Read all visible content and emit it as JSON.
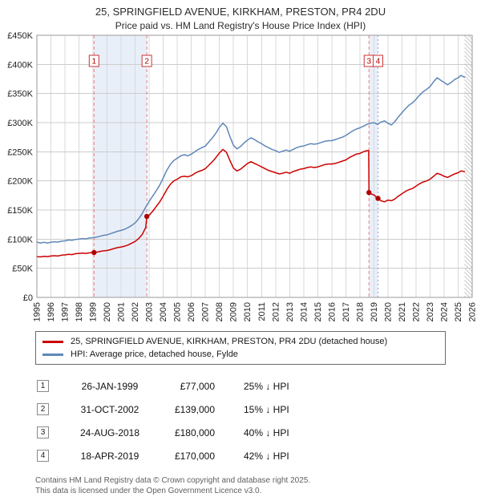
{
  "page": {
    "title": "25, SPRINGFIELD AVENUE, KIRKHAM, PRESTON, PR4 2DU",
    "subtitle": "Price paid vs. HM Land Registry's House Price Index (HPI)"
  },
  "chart_data": {
    "type": "line",
    "title": "25, SPRINGFIELD AVENUE, KIRKHAM, PRESTON, PR4 2DU",
    "subtitle": "Price paid vs. HM Land Registry's House Price Index (HPI)",
    "y_unit": "£K",
    "ylim": [
      0,
      450
    ],
    "x_range": [
      1995,
      2026
    ],
    "grid": true,
    "legend_position": "below",
    "yticks": [
      {
        "value": 0,
        "label": "£0"
      },
      {
        "value": 50,
        "label": "£50K"
      },
      {
        "value": 100,
        "label": "£100K"
      },
      {
        "value": 150,
        "label": "£150K"
      },
      {
        "value": 200,
        "label": "£200K"
      },
      {
        "value": 250,
        "label": "£250K"
      },
      {
        "value": 300,
        "label": "£300K"
      },
      {
        "value": 350,
        "label": "£350K"
      },
      {
        "value": 400,
        "label": "£400K"
      },
      {
        "value": 450,
        "label": "£450K"
      }
    ],
    "x_ticks": [
      1995,
      1996,
      1997,
      1998,
      1999,
      2000,
      2001,
      2002,
      2003,
      2004,
      2005,
      2006,
      2007,
      2008,
      2009,
      2010,
      2011,
      2012,
      2013,
      2014,
      2015,
      2016,
      2017,
      2018,
      2019,
      2020,
      2021,
      2022,
      2023,
      2024,
      2025,
      2026
    ],
    "bands": [
      {
        "x0": 1999.07,
        "x1": 2002.83,
        "color": "#e9eff9"
      },
      {
        "x0": 2018.65,
        "x1": 2019.29,
        "color": "#e9eff9"
      }
    ],
    "hatch_from_x": 2025.45,
    "colors": {
      "grid": "#d9d9d9",
      "grid_h": "#cccccc",
      "border": "#999999",
      "hatch": "#c8c8c8",
      "dot": "#b00000",
      "badge_border": "#cc3333",
      "badge_text": "#b00000"
    },
    "series": [
      {
        "name": "HPI: Average price, detached house, Fylde",
        "color": "#5f87b8",
        "width": 1.5,
        "points": [
          [
            1995.0,
            95
          ],
          [
            1995.25,
            93.5
          ],
          [
            1995.5,
            94.5
          ],
          [
            1995.75,
            93.5
          ],
          [
            1996.0,
            94.5
          ],
          [
            1996.25,
            95.5
          ],
          [
            1996.5,
            95
          ],
          [
            1996.75,
            96.5
          ],
          [
            1997.0,
            97
          ],
          [
            1997.25,
            98.5
          ],
          [
            1997.5,
            98
          ],
          [
            1997.75,
            99.5
          ],
          [
            1998.0,
            100
          ],
          [
            1998.25,
            101
          ],
          [
            1998.5,
            100.5
          ],
          [
            1998.75,
            102
          ],
          [
            1999.0,
            102.5
          ],
          [
            1999.25,
            103.5
          ],
          [
            1999.5,
            105
          ],
          [
            1999.75,
            106.5
          ],
          [
            2000.0,
            107.5
          ],
          [
            2000.25,
            109.5
          ],
          [
            2000.5,
            111.5
          ],
          [
            2000.75,
            113.5
          ],
          [
            2001.0,
            115
          ],
          [
            2001.25,
            117
          ],
          [
            2001.5,
            120
          ],
          [
            2001.75,
            123.5
          ],
          [
            2002.0,
            128
          ],
          [
            2002.25,
            135
          ],
          [
            2002.5,
            144
          ],
          [
            2002.75,
            155
          ],
          [
            2003.0,
            165
          ],
          [
            2003.25,
            174
          ],
          [
            2003.5,
            183
          ],
          [
            2003.75,
            193
          ],
          [
            2004.0,
            205
          ],
          [
            2004.25,
            218
          ],
          [
            2004.5,
            228
          ],
          [
            2004.75,
            235
          ],
          [
            2005.0,
            239
          ],
          [
            2005.25,
            243
          ],
          [
            2005.5,
            245
          ],
          [
            2005.75,
            243
          ],
          [
            2006.0,
            246
          ],
          [
            2006.25,
            250
          ],
          [
            2006.5,
            254
          ],
          [
            2006.75,
            257
          ],
          [
            2007.0,
            260
          ],
          [
            2007.25,
            267
          ],
          [
            2007.5,
            274
          ],
          [
            2007.75,
            282
          ],
          [
            2008.0,
            292
          ],
          [
            2008.25,
            299
          ],
          [
            2008.5,
            293
          ],
          [
            2008.75,
            276
          ],
          [
            2009.0,
            261
          ],
          [
            2009.25,
            255
          ],
          [
            2009.5,
            259
          ],
          [
            2009.75,
            265
          ],
          [
            2010.0,
            270
          ],
          [
            2010.25,
            274
          ],
          [
            2010.5,
            271
          ],
          [
            2010.75,
            267
          ],
          [
            2011.0,
            264
          ],
          [
            2011.25,
            260
          ],
          [
            2011.5,
            257
          ],
          [
            2011.75,
            254
          ],
          [
            2012.0,
            252
          ],
          [
            2012.25,
            249
          ],
          [
            2012.5,
            251
          ],
          [
            2012.75,
            253
          ],
          [
            2013.0,
            251
          ],
          [
            2013.25,
            254
          ],
          [
            2013.5,
            257
          ],
          [
            2013.75,
            259
          ],
          [
            2014.0,
            260
          ],
          [
            2014.25,
            262
          ],
          [
            2014.5,
            264
          ],
          [
            2014.75,
            263
          ],
          [
            2015.0,
            264
          ],
          [
            2015.25,
            266
          ],
          [
            2015.5,
            268
          ],
          [
            2015.75,
            269
          ],
          [
            2016.0,
            269
          ],
          [
            2016.25,
            271
          ],
          [
            2016.5,
            273
          ],
          [
            2016.75,
            275
          ],
          [
            2017.0,
            278
          ],
          [
            2017.25,
            282
          ],
          [
            2017.5,
            286
          ],
          [
            2017.75,
            289
          ],
          [
            2018.0,
            291
          ],
          [
            2018.25,
            294
          ],
          [
            2018.5,
            297
          ],
          [
            2018.75,
            299
          ],
          [
            2019.0,
            300
          ],
          [
            2019.25,
            297
          ],
          [
            2019.5,
            301
          ],
          [
            2019.75,
            303
          ],
          [
            2020.0,
            299
          ],
          [
            2020.25,
            296
          ],
          [
            2020.5,
            302
          ],
          [
            2020.75,
            310
          ],
          [
            2021.0,
            317
          ],
          [
            2021.25,
            324
          ],
          [
            2021.5,
            330
          ],
          [
            2021.75,
            334
          ],
          [
            2022.0,
            340
          ],
          [
            2022.25,
            347
          ],
          [
            2022.5,
            353
          ],
          [
            2022.75,
            357
          ],
          [
            2023.0,
            362
          ],
          [
            2023.25,
            370
          ],
          [
            2023.5,
            377
          ],
          [
            2023.75,
            373
          ],
          [
            2024.0,
            369
          ],
          [
            2024.25,
            365
          ],
          [
            2024.5,
            369
          ],
          [
            2024.75,
            374
          ],
          [
            2025.0,
            377
          ],
          [
            2025.2,
            381
          ],
          [
            2025.45,
            378
          ]
        ]
      },
      {
        "name": "25, SPRINGFIELD AVENUE, KIRKHAM, PRESTON, PR4 2DU (detached house)",
        "color": "#cc0000",
        "width": 1.5,
        "points": [
          [
            1995.0,
            70
          ],
          [
            1995.25,
            69.5
          ],
          [
            1995.5,
            70.5
          ],
          [
            1995.75,
            70
          ],
          [
            1996.0,
            71
          ],
          [
            1996.25,
            71.5
          ],
          [
            1996.5,
            71
          ],
          [
            1996.75,
            72.5
          ],
          [
            1997.0,
            73
          ],
          [
            1997.25,
            74
          ],
          [
            1997.5,
            73.5
          ],
          [
            1997.75,
            75
          ],
          [
            1998.0,
            75.5
          ],
          [
            1998.25,
            76
          ],
          [
            1998.5,
            75.5
          ],
          [
            1998.75,
            76.5
          ],
          [
            1999.07,
            77
          ],
          [
            1999.25,
            77.5
          ],
          [
            1999.5,
            79
          ],
          [
            1999.75,
            80
          ],
          [
            2000.0,
            80.5
          ],
          [
            2000.25,
            82
          ],
          [
            2000.5,
            84
          ],
          [
            2000.75,
            85.5
          ],
          [
            2001.0,
            86.5
          ],
          [
            2001.25,
            88
          ],
          [
            2001.5,
            90
          ],
          [
            2001.75,
            93
          ],
          [
            2002.0,
            96
          ],
          [
            2002.25,
            101
          ],
          [
            2002.5,
            108
          ],
          [
            2002.75,
            120
          ],
          [
            2002.83,
            139
          ],
          [
            2003.0,
            141
          ],
          [
            2003.25,
            148
          ],
          [
            2003.5,
            156
          ],
          [
            2003.75,
            164
          ],
          [
            2004.0,
            174
          ],
          [
            2004.25,
            185
          ],
          [
            2004.5,
            194
          ],
          [
            2004.75,
            200
          ],
          [
            2005.0,
            203
          ],
          [
            2005.25,
            207
          ],
          [
            2005.5,
            208
          ],
          [
            2005.75,
            207
          ],
          [
            2006.0,
            209
          ],
          [
            2006.25,
            213
          ],
          [
            2006.5,
            216
          ],
          [
            2006.75,
            218
          ],
          [
            2007.0,
            221
          ],
          [
            2007.25,
            227
          ],
          [
            2007.5,
            233
          ],
          [
            2007.75,
            240
          ],
          [
            2008.0,
            248
          ],
          [
            2008.25,
            254
          ],
          [
            2008.5,
            249
          ],
          [
            2008.75,
            235
          ],
          [
            2009.0,
            222
          ],
          [
            2009.25,
            217
          ],
          [
            2009.5,
            220
          ],
          [
            2009.75,
            225
          ],
          [
            2010.0,
            230
          ],
          [
            2010.25,
            233
          ],
          [
            2010.5,
            230
          ],
          [
            2010.75,
            227
          ],
          [
            2011.0,
            224
          ],
          [
            2011.25,
            221
          ],
          [
            2011.5,
            218
          ],
          [
            2011.75,
            216
          ],
          [
            2012.0,
            214
          ],
          [
            2012.25,
            212
          ],
          [
            2012.5,
            213
          ],
          [
            2012.75,
            215
          ],
          [
            2013.0,
            213
          ],
          [
            2013.25,
            216
          ],
          [
            2013.5,
            218
          ],
          [
            2013.75,
            220
          ],
          [
            2014.0,
            221
          ],
          [
            2014.25,
            223
          ],
          [
            2014.5,
            224
          ],
          [
            2014.75,
            223
          ],
          [
            2015.0,
            224
          ],
          [
            2015.25,
            226
          ],
          [
            2015.5,
            228
          ],
          [
            2015.75,
            229
          ],
          [
            2016.0,
            229
          ],
          [
            2016.25,
            230
          ],
          [
            2016.5,
            232
          ],
          [
            2016.75,
            234
          ],
          [
            2017.0,
            236
          ],
          [
            2017.25,
            240
          ],
          [
            2017.5,
            243
          ],
          [
            2017.75,
            246
          ],
          [
            2018.0,
            247
          ],
          [
            2018.25,
            250
          ],
          [
            2018.5,
            252
          ],
          [
            2018.63,
            252
          ],
          [
            2018.65,
            180
          ],
          [
            2018.75,
            178
          ],
          [
            2019.0,
            176
          ],
          [
            2019.29,
            170
          ],
          [
            2019.5,
            166
          ],
          [
            2019.75,
            164
          ],
          [
            2020.0,
            167
          ],
          [
            2020.25,
            166
          ],
          [
            2020.5,
            169
          ],
          [
            2020.75,
            174
          ],
          [
            2021.0,
            178
          ],
          [
            2021.25,
            182
          ],
          [
            2021.5,
            185
          ],
          [
            2021.75,
            187
          ],
          [
            2022.0,
            191
          ],
          [
            2022.25,
            195
          ],
          [
            2022.5,
            198
          ],
          [
            2022.75,
            200
          ],
          [
            2023.0,
            203
          ],
          [
            2023.25,
            208
          ],
          [
            2023.5,
            213
          ],
          [
            2023.75,
            211
          ],
          [
            2024.0,
            208
          ],
          [
            2024.25,
            206
          ],
          [
            2024.5,
            209
          ],
          [
            2024.75,
            212
          ],
          [
            2025.0,
            214
          ],
          [
            2025.2,
            217
          ],
          [
            2025.45,
            216
          ]
        ]
      }
    ],
    "sale_markers": [
      {
        "num": "1",
        "x": 1999.07,
        "y": 77,
        "line_style": "dashed",
        "line_color": "#e58080"
      },
      {
        "num": "2",
        "x": 2002.83,
        "y": 139,
        "line_style": "dashed",
        "line_color": "#e58080"
      },
      {
        "num": "3",
        "x": 2018.65,
        "y": 180,
        "line_style": "dashed",
        "line_color": "#e58080"
      },
      {
        "num": "4",
        "x": 2019.29,
        "y": 170,
        "line_style": "dotted",
        "line_color": "#8aa8d8"
      }
    ]
  },
  "legend": [
    {
      "label": "25, SPRINGFIELD AVENUE, KIRKHAM, PRESTON, PR4 2DU (detached house)",
      "color": "#cc0000"
    },
    {
      "label": "HPI: Average price, detached house, Fylde",
      "color": "#5f87b8"
    }
  ],
  "transactions": [
    {
      "num": "1",
      "date": "26-JAN-1999",
      "price": "£77,000",
      "hpi_delta": "25% ↓ HPI"
    },
    {
      "num": "2",
      "date": "31-OCT-2002",
      "price": "£139,000",
      "hpi_delta": "15% ↓ HPI"
    },
    {
      "num": "3",
      "date": "24-AUG-2018",
      "price": "£180,000",
      "hpi_delta": "40% ↓ HPI"
    },
    {
      "num": "4",
      "date": "18-APR-2019",
      "price": "£170,000",
      "hpi_delta": "42% ↓ HPI"
    }
  ],
  "footer": {
    "line1": "Contains HM Land Registry data © Crown copyright and database right 2025.",
    "line2": "This data is licensed under the Open Government Licence v3.0."
  }
}
